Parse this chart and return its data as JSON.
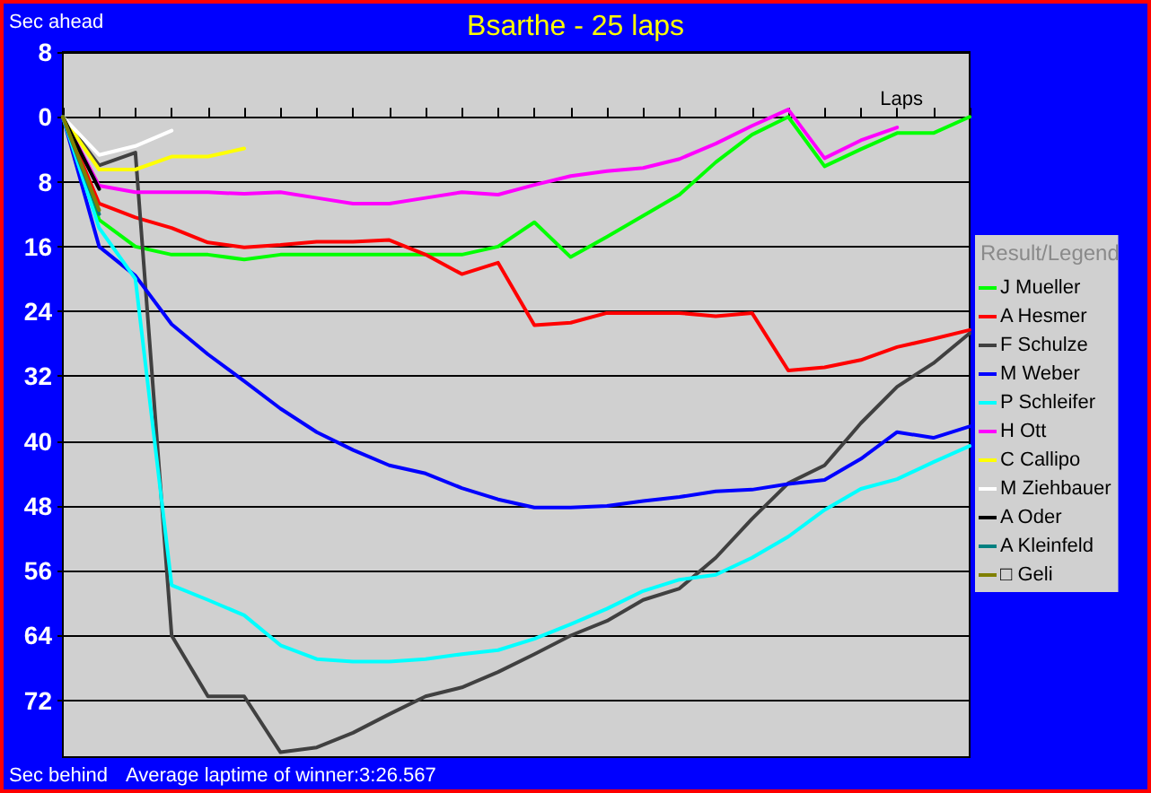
{
  "chart_data": {
    "type": "line",
    "title": "Bsarthe - 25 laps",
    "ylabel": "Sec ahead",
    "xlabel": "Laps",
    "legend_title": "Result/Legend",
    "annotations": [
      "Sec behind",
      "Average laptime of winner:3:26.567"
    ],
    "categories": [
      null,
      null,
      null,
      null,
      null,
      null,
      null,
      null,
      null,
      null,
      null,
      null,
      null,
      null,
      null,
      null,
      null,
      null,
      null,
      null,
      null,
      null,
      null,
      null,
      null,
      null
    ],
    "series": [
      {
        "name": "J Mueller",
        "color": "#00ff00",
        "values": [
          0,
          12.7,
          16,
          17,
          17,
          17.6,
          17,
          17,
          17,
          17,
          17,
          17,
          16,
          13,
          17.3,
          14.8,
          12.2,
          9.6,
          5.6,
          2.2,
          0,
          6.1,
          4,
          2,
          2,
          0
        ]
      },
      {
        "name": "A Hesmer",
        "color": "#ff0000",
        "values": [
          0,
          10.7,
          12.4,
          13.7,
          15.5,
          16.1,
          15.8,
          15.4,
          15.4,
          15.2,
          17,
          19.4,
          18,
          25.7,
          25.4,
          24.2,
          24.2,
          24.2,
          24.6,
          24.2,
          31.3,
          30.9,
          30,
          28.4,
          27.4,
          26.3
        ]
      },
      {
        "name": "F Schulze",
        "color": "#404040",
        "values": [
          0,
          6,
          4.4,
          64,
          71.5,
          71.5,
          78.4,
          77.8,
          76,
          73.7,
          71.5,
          70.4,
          68.5,
          66.3,
          64,
          62.2,
          59.6,
          58.2,
          54.4,
          49.6,
          45.2,
          43,
          37.8,
          33.3,
          30.4,
          26.7
        ]
      },
      {
        "name": "M Weber",
        "color": "#0000ff",
        "values": [
          0,
          16,
          19.6,
          25.6,
          29.3,
          32.6,
          36,
          38.9,
          41.1,
          43,
          44,
          45.8,
          47.2,
          48.2,
          48.2,
          48,
          47.4,
          46.9,
          46.2,
          46,
          45.3,
          44.8,
          42.2,
          38.9,
          39.6,
          38.2
        ]
      },
      {
        "name": "P Schleifer",
        "color": "#00ffff",
        "values": [
          0,
          13.7,
          20,
          57.8,
          59.6,
          61.5,
          65.2,
          66.9,
          67.2,
          67.2,
          66.9,
          66.3,
          65.8,
          64.4,
          62.6,
          60.7,
          58.5,
          57.1,
          56.5,
          54.4,
          51.8,
          48.5,
          45.9,
          44.7,
          42.6,
          40.6
        ]
      },
      {
        "name": "H Ott",
        "color": "#ff00ff",
        "values": [
          0,
          8.5,
          9.3,
          9.3,
          9.3,
          9.5,
          9.3,
          10,
          10.7,
          10.7,
          10,
          9.3,
          9.6,
          8.4,
          7.3,
          6.7,
          6.3,
          5.2,
          3.3,
          1.1,
          -0.9,
          5.1,
          2.9,
          1.3,
          null,
          null
        ]
      },
      {
        "name": "C Callipo",
        "color": "#ffff00",
        "values": [
          0,
          6.5,
          6.5,
          4.9,
          4.9,
          3.9,
          null,
          null,
          null,
          null,
          null,
          null,
          null,
          null,
          null,
          null,
          null,
          null,
          null,
          null,
          null,
          null,
          null,
          null,
          null,
          null
        ]
      },
      {
        "name": "M Ziehbauer",
        "color": "#ffffff",
        "values": [
          0,
          4.7,
          3.6,
          1.7,
          null,
          null,
          null,
          null,
          null,
          null,
          null,
          null,
          null,
          null,
          null,
          null,
          null,
          null,
          null,
          null,
          null,
          null,
          null,
          null,
          null,
          null
        ]
      },
      {
        "name": "A Oder",
        "color": "#000000",
        "values": [
          0,
          8.9,
          null,
          null,
          null,
          null,
          null,
          null,
          null,
          null,
          null,
          null,
          null,
          null,
          null,
          null,
          null,
          null,
          null,
          null,
          null,
          null,
          null,
          null,
          null,
          null
        ]
      },
      {
        "name": "A Kleinfeld",
        "color": "#008080",
        "values": [
          0,
          12,
          null,
          null,
          null,
          null,
          null,
          null,
          null,
          null,
          null,
          null,
          null,
          null,
          null,
          null,
          null,
          null,
          null,
          null,
          null,
          null,
          null,
          null,
          null,
          null
        ]
      },
      {
        "name": "□ Geli",
        "color": "#808000",
        "values": [
          0,
          11.5,
          null,
          null,
          null,
          null,
          null,
          null,
          null,
          null,
          null,
          null,
          null,
          null,
          null,
          null,
          null,
          null,
          null,
          null,
          null,
          null,
          null,
          null,
          null,
          null
        ]
      }
    ],
    "ylim": [
      79,
      -8
    ],
    "yticks": [
      {
        "value": -8,
        "label": "8"
      },
      0,
      8,
      16,
      24,
      32,
      40,
      48,
      56,
      64,
      72
    ],
    "tick_labels": "y",
    "grid": "y",
    "legend": "right",
    "marker": "none",
    "line_style": "solid"
  }
}
